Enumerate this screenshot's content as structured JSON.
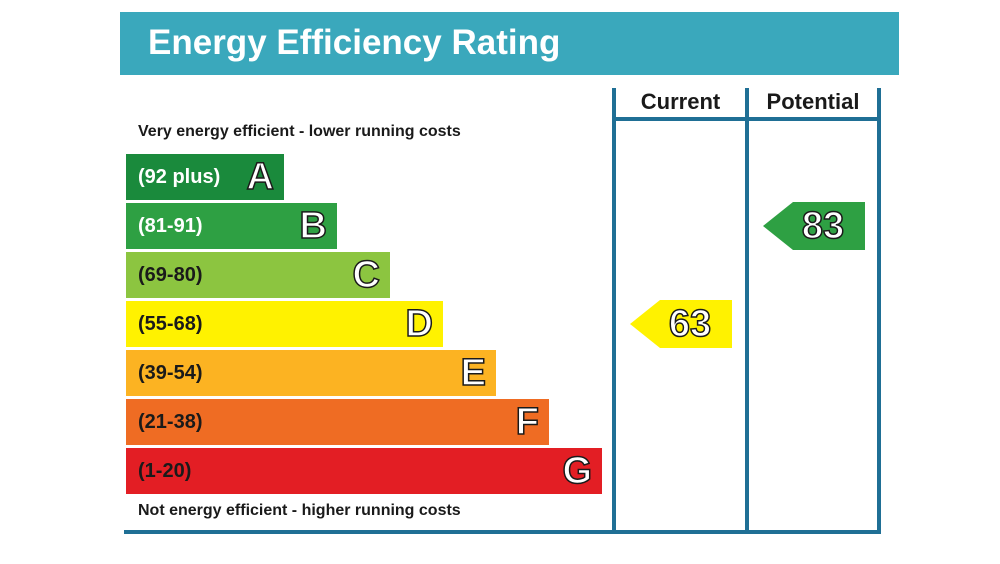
{
  "title": "Energy Efficiency Rating",
  "chart_data": {
    "type": "bar",
    "title": "Energy Efficiency Rating",
    "top_caption": "Very energy efficient - lower running costs",
    "bottom_caption": "Not energy efficient - higher running costs",
    "bands": [
      {
        "letter": "A",
        "range": "(92 plus)",
        "color": "#1a8a3c",
        "text_color": "#ffffff"
      },
      {
        "letter": "B",
        "range": "(81-91)",
        "color": "#2ea043",
        "text_color": "#ffffff"
      },
      {
        "letter": "C",
        "range": "(69-80)",
        "color": "#8cc540",
        "text_color": "#1a1a1a"
      },
      {
        "letter": "D",
        "range": "(55-68)",
        "color": "#fff200",
        "text_color": "#1a1a1a"
      },
      {
        "letter": "E",
        "range": "(39-54)",
        "color": "#fcb322",
        "text_color": "#1a1a1a"
      },
      {
        "letter": "F",
        "range": "(21-38)",
        "color": "#ef6c23",
        "text_color": "#1a1a1a"
      },
      {
        "letter": "G",
        "range": "(1-20)",
        "color": "#e31e24",
        "text_color": "#1a1a1a"
      }
    ],
    "columns": [
      "Current",
      "Potential"
    ],
    "current": {
      "value": 63,
      "band": "D",
      "color": "#fff200"
    },
    "potential": {
      "value": 83,
      "band": "B",
      "color": "#2ea043"
    }
  }
}
